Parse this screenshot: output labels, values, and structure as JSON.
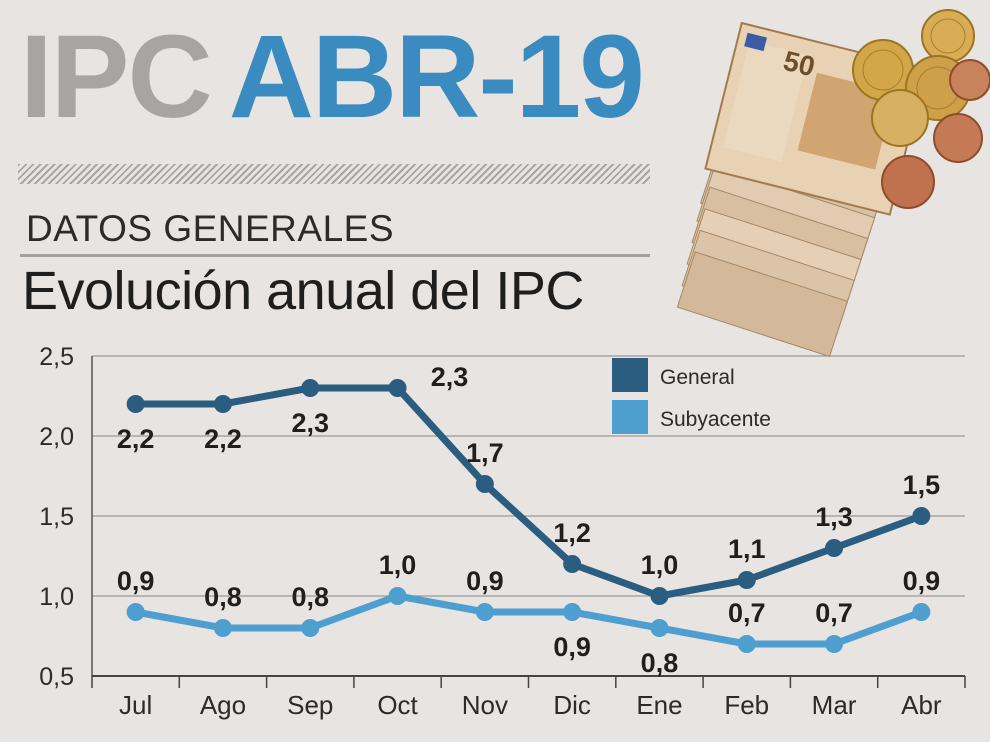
{
  "header": {
    "title_part1": "IPC",
    "title_part2": "ABR-19",
    "section": "DATOS GENERALES",
    "subtitle": "Evolución anual del IPC"
  },
  "colors": {
    "general": "#2a5d80",
    "subyacente": "#4e9fcf",
    "accent": "#3a8bc0",
    "title_gray": "#a7a5a3"
  },
  "chart_data": {
    "type": "line",
    "categories": [
      "Jul",
      "Ago",
      "Sep",
      "Oct",
      "Nov",
      "Dic",
      "Ene",
      "Feb",
      "Mar",
      "Abr"
    ],
    "series": [
      {
        "name": "General",
        "values": [
          2.2,
          2.2,
          2.3,
          2.3,
          1.7,
          1.2,
          1.0,
          1.1,
          1.3,
          1.5
        ],
        "labels": [
          "2,2",
          "2,2",
          "2,3",
          "2,3",
          "1,7",
          "1,2",
          "1,0",
          "1,1",
          "1,3",
          "1,5"
        ]
      },
      {
        "name": "Subyacente",
        "values": [
          0.9,
          0.8,
          0.8,
          1.0,
          0.9,
          0.9,
          0.8,
          0.7,
          0.7,
          0.9
        ],
        "labels": [
          "0,9",
          "0,8",
          "0,8",
          "1,0",
          "0,9",
          "0,9",
          "0,8",
          "0,7",
          "0,7",
          "0,9"
        ]
      }
    ],
    "yticks": [
      "2,5",
      "2,0",
      "1,5",
      "1,0",
      "0,5"
    ],
    "ytick_values": [
      2.5,
      2.0,
      1.5,
      1.0,
      0.5
    ],
    "ylim": [
      0.5,
      2.5
    ],
    "grid": true,
    "legend": "top-right"
  }
}
